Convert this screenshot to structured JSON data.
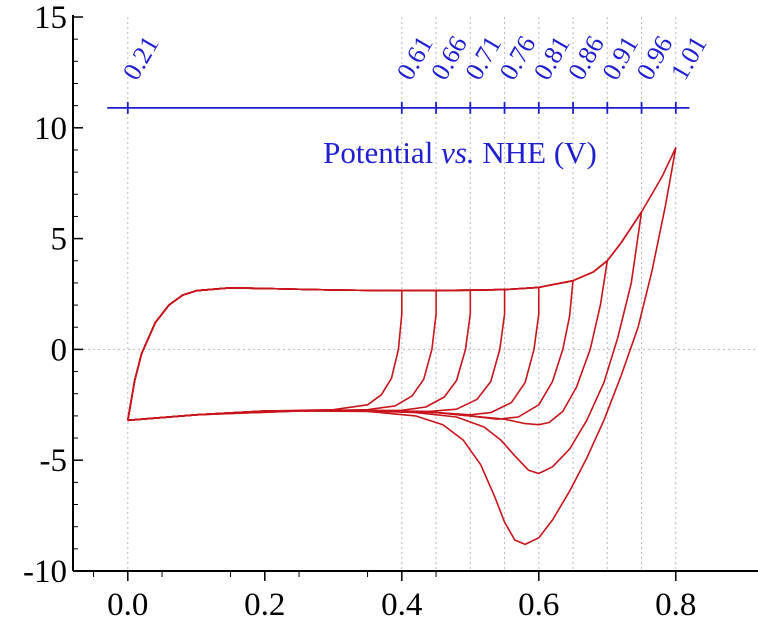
{
  "chart_data": {
    "type": "line",
    "xlabel": "",
    "ylabel": "",
    "xlim": [
      -0.08,
      0.92
    ],
    "ylim": [
      -10,
      15
    ],
    "x_ticks": [
      "0.0",
      "0.2",
      "0.4",
      "0.6",
      "0.8"
    ],
    "x_tick_values": [
      0.0,
      0.2,
      0.4,
      0.6,
      0.8
    ],
    "y_ticks": [
      "15",
      "10",
      "5",
      "0",
      "-5",
      "-10"
    ],
    "y_tick_values": [
      15,
      10,
      5,
      0,
      -5,
      -10
    ],
    "top_axis": {
      "label_prefix": "Potential ",
      "label_italic": "vs.",
      "label_suffix": " NHE (V)",
      "y_position": 10.9,
      "ticks": [
        {
          "label": "0.21",
          "x": 0.0
        },
        {
          "label": "0.61",
          "x": 0.4
        },
        {
          "label": "0.66",
          "x": 0.45
        },
        {
          "label": "0.71",
          "x": 0.5
        },
        {
          "label": "0.76",
          "x": 0.55
        },
        {
          "label": "0.81",
          "x": 0.6
        },
        {
          "label": "0.86",
          "x": 0.65
        },
        {
          "label": "0.91",
          "x": 0.7
        },
        {
          "label": "0.96",
          "x": 0.75
        },
        {
          "label": "1.01",
          "x": 0.8
        }
      ]
    },
    "vertical_gridlines_x": [
      0.0,
      0.4,
      0.45,
      0.5,
      0.55,
      0.6,
      0.65,
      0.7,
      0.75,
      0.8
    ],
    "zero_line": true,
    "colors": {
      "curve": "#c8151b",
      "top_axis": "#1f1fd0",
      "grid": "#b8b8b8",
      "axis": "#000000"
    },
    "curve_color": "#c8151b",
    "series": [
      {
        "vertex": 0.4,
        "forward": [
          [
            0,
            -3.2
          ],
          [
            0.01,
            -1.4
          ],
          [
            0.02,
            -0.2
          ],
          [
            0.04,
            1.2
          ],
          [
            0.06,
            2.0
          ],
          [
            0.08,
            2.45
          ],
          [
            0.1,
            2.65
          ],
          [
            0.15,
            2.78
          ],
          [
            0.2,
            2.75
          ],
          [
            0.3,
            2.68
          ],
          [
            0.4,
            2.65
          ]
        ],
        "reverse": [
          [
            0.4,
            2.65
          ],
          [
            0.4,
            1.6
          ],
          [
            0.395,
            0
          ],
          [
            0.385,
            -1.3
          ],
          [
            0.37,
            -2.05
          ],
          [
            0.35,
            -2.5
          ],
          [
            0.3,
            -2.72
          ],
          [
            0.2,
            -2.78
          ],
          [
            0.1,
            -2.95
          ],
          [
            0,
            -3.2
          ]
        ]
      },
      {
        "vertex": 0.45,
        "forward": [
          [
            0,
            -3.2
          ],
          [
            0.01,
            -1.4
          ],
          [
            0.02,
            -0.2
          ],
          [
            0.04,
            1.2
          ],
          [
            0.06,
            2.0
          ],
          [
            0.08,
            2.45
          ],
          [
            0.1,
            2.65
          ],
          [
            0.15,
            2.78
          ],
          [
            0.2,
            2.75
          ],
          [
            0.3,
            2.68
          ],
          [
            0.4,
            2.65
          ],
          [
            0.45,
            2.66
          ]
        ],
        "reverse": [
          [
            0.45,
            2.66
          ],
          [
            0.45,
            1.6
          ],
          [
            0.444,
            0
          ],
          [
            0.432,
            -1.35
          ],
          [
            0.415,
            -2.1
          ],
          [
            0.39,
            -2.55
          ],
          [
            0.35,
            -2.72
          ],
          [
            0.3,
            -2.75
          ],
          [
            0.2,
            -2.78
          ],
          [
            0.1,
            -2.95
          ],
          [
            0,
            -3.2
          ]
        ]
      },
      {
        "vertex": 0.5,
        "forward": [
          [
            0,
            -3.2
          ],
          [
            0.01,
            -1.4
          ],
          [
            0.02,
            -0.2
          ],
          [
            0.04,
            1.2
          ],
          [
            0.06,
            2.0
          ],
          [
            0.08,
            2.45
          ],
          [
            0.1,
            2.65
          ],
          [
            0.15,
            2.78
          ],
          [
            0.2,
            2.75
          ],
          [
            0.3,
            2.68
          ],
          [
            0.4,
            2.65
          ],
          [
            0.5,
            2.67
          ]
        ],
        "reverse": [
          [
            0.5,
            2.67
          ],
          [
            0.5,
            1.6
          ],
          [
            0.493,
            0
          ],
          [
            0.48,
            -1.4
          ],
          [
            0.462,
            -2.15
          ],
          [
            0.435,
            -2.6
          ],
          [
            0.4,
            -2.75
          ],
          [
            0.3,
            -2.76
          ],
          [
            0.2,
            -2.78
          ],
          [
            0.1,
            -2.95
          ],
          [
            0,
            -3.2
          ]
        ]
      },
      {
        "vertex": 0.55,
        "forward": [
          [
            0,
            -3.2
          ],
          [
            0.01,
            -1.4
          ],
          [
            0.02,
            -0.2
          ],
          [
            0.04,
            1.2
          ],
          [
            0.06,
            2.0
          ],
          [
            0.08,
            2.45
          ],
          [
            0.1,
            2.65
          ],
          [
            0.15,
            2.78
          ],
          [
            0.2,
            2.75
          ],
          [
            0.3,
            2.68
          ],
          [
            0.4,
            2.65
          ],
          [
            0.5,
            2.67
          ],
          [
            0.55,
            2.7
          ]
        ],
        "reverse": [
          [
            0.55,
            2.7
          ],
          [
            0.55,
            1.6
          ],
          [
            0.543,
            0
          ],
          [
            0.53,
            -1.45
          ],
          [
            0.51,
            -2.25
          ],
          [
            0.48,
            -2.7
          ],
          [
            0.44,
            -2.8
          ],
          [
            0.4,
            -2.78
          ],
          [
            0.3,
            -2.76
          ],
          [
            0.2,
            -2.78
          ],
          [
            0.1,
            -2.95
          ],
          [
            0,
            -3.2
          ]
        ]
      },
      {
        "vertex": 0.6,
        "forward": [
          [
            0,
            -3.2
          ],
          [
            0.01,
            -1.4
          ],
          [
            0.02,
            -0.2
          ],
          [
            0.04,
            1.2
          ],
          [
            0.06,
            2.0
          ],
          [
            0.08,
            2.45
          ],
          [
            0.1,
            2.65
          ],
          [
            0.15,
            2.78
          ],
          [
            0.2,
            2.75
          ],
          [
            0.3,
            2.68
          ],
          [
            0.4,
            2.65
          ],
          [
            0.5,
            2.67
          ],
          [
            0.55,
            2.7
          ],
          [
            0.6,
            2.8
          ]
        ],
        "reverse": [
          [
            0.6,
            2.8
          ],
          [
            0.6,
            1.6
          ],
          [
            0.593,
            0
          ],
          [
            0.58,
            -1.5
          ],
          [
            0.56,
            -2.4
          ],
          [
            0.53,
            -2.85
          ],
          [
            0.5,
            -2.95
          ],
          [
            0.45,
            -2.85
          ],
          [
            0.4,
            -2.78
          ],
          [
            0.3,
            -2.76
          ],
          [
            0.2,
            -2.78
          ],
          [
            0.1,
            -2.95
          ],
          [
            0,
            -3.2
          ]
        ]
      },
      {
        "vertex": 0.65,
        "forward": [
          [
            0,
            -3.2
          ],
          [
            0.01,
            -1.4
          ],
          [
            0.02,
            -0.2
          ],
          [
            0.04,
            1.2
          ],
          [
            0.06,
            2.0
          ],
          [
            0.08,
            2.45
          ],
          [
            0.1,
            2.65
          ],
          [
            0.15,
            2.78
          ],
          [
            0.2,
            2.75
          ],
          [
            0.3,
            2.68
          ],
          [
            0.4,
            2.65
          ],
          [
            0.5,
            2.67
          ],
          [
            0.55,
            2.7
          ],
          [
            0.6,
            2.8
          ],
          [
            0.65,
            3.1
          ]
        ],
        "reverse": [
          [
            0.65,
            3.1
          ],
          [
            0.645,
            1.5
          ],
          [
            0.635,
            0
          ],
          [
            0.62,
            -1.45
          ],
          [
            0.6,
            -2.5
          ],
          [
            0.57,
            -3.05
          ],
          [
            0.54,
            -3.15
          ],
          [
            0.5,
            -3.0
          ],
          [
            0.45,
            -2.85
          ],
          [
            0.4,
            -2.78
          ],
          [
            0.3,
            -2.76
          ],
          [
            0.2,
            -2.78
          ],
          [
            0.1,
            -2.95
          ],
          [
            0,
            -3.2
          ]
        ]
      },
      {
        "vertex": 0.7,
        "forward": [
          [
            0,
            -3.2
          ],
          [
            0.01,
            -1.4
          ],
          [
            0.02,
            -0.2
          ],
          [
            0.04,
            1.2
          ],
          [
            0.06,
            2.0
          ],
          [
            0.08,
            2.45
          ],
          [
            0.1,
            2.65
          ],
          [
            0.15,
            2.78
          ],
          [
            0.2,
            2.75
          ],
          [
            0.3,
            2.68
          ],
          [
            0.4,
            2.65
          ],
          [
            0.5,
            2.67
          ],
          [
            0.55,
            2.7
          ],
          [
            0.6,
            2.8
          ],
          [
            0.65,
            3.1
          ],
          [
            0.68,
            3.5
          ],
          [
            0.7,
            4.0
          ]
        ],
        "reverse": [
          [
            0.7,
            4.0
          ],
          [
            0.69,
            2.0
          ],
          [
            0.675,
            0
          ],
          [
            0.655,
            -1.7
          ],
          [
            0.635,
            -2.8
          ],
          [
            0.615,
            -3.3
          ],
          [
            0.6,
            -3.4
          ],
          [
            0.58,
            -3.35
          ],
          [
            0.55,
            -3.15
          ],
          [
            0.5,
            -3.0
          ],
          [
            0.45,
            -2.85
          ],
          [
            0.4,
            -2.78
          ],
          [
            0.3,
            -2.76
          ],
          [
            0.2,
            -2.78
          ],
          [
            0.1,
            -2.95
          ],
          [
            0,
            -3.2
          ]
        ]
      },
      {
        "vertex": 0.75,
        "forward": [
          [
            0,
            -3.2
          ],
          [
            0.01,
            -1.4
          ],
          [
            0.02,
            -0.2
          ],
          [
            0.04,
            1.2
          ],
          [
            0.06,
            2.0
          ],
          [
            0.08,
            2.45
          ],
          [
            0.1,
            2.65
          ],
          [
            0.15,
            2.78
          ],
          [
            0.2,
            2.75
          ],
          [
            0.3,
            2.68
          ],
          [
            0.4,
            2.65
          ],
          [
            0.5,
            2.67
          ],
          [
            0.55,
            2.7
          ],
          [
            0.6,
            2.8
          ],
          [
            0.65,
            3.1
          ],
          [
            0.68,
            3.5
          ],
          [
            0.7,
            4.0
          ],
          [
            0.72,
            4.8
          ],
          [
            0.75,
            6.2
          ]
        ],
        "reverse": [
          [
            0.75,
            6.2
          ],
          [
            0.735,
            3.0
          ],
          [
            0.715,
            0.5
          ],
          [
            0.695,
            -1.5
          ],
          [
            0.67,
            -3.2
          ],
          [
            0.645,
            -4.5
          ],
          [
            0.62,
            -5.3
          ],
          [
            0.6,
            -5.6
          ],
          [
            0.585,
            -5.45
          ],
          [
            0.565,
            -4.8
          ],
          [
            0.545,
            -4.1
          ],
          [
            0.52,
            -3.5
          ],
          [
            0.48,
            -3.05
          ],
          [
            0.42,
            -2.85
          ],
          [
            0.35,
            -2.78
          ],
          [
            0.25,
            -2.78
          ],
          [
            0.1,
            -2.95
          ],
          [
            0,
            -3.2
          ]
        ]
      },
      {
        "vertex": 0.8,
        "forward": [
          [
            0,
            -3.2
          ],
          [
            0.01,
            -1.4
          ],
          [
            0.02,
            -0.2
          ],
          [
            0.04,
            1.2
          ],
          [
            0.06,
            2.0
          ],
          [
            0.08,
            2.45
          ],
          [
            0.1,
            2.65
          ],
          [
            0.15,
            2.78
          ],
          [
            0.2,
            2.75
          ],
          [
            0.3,
            2.68
          ],
          [
            0.4,
            2.65
          ],
          [
            0.5,
            2.67
          ],
          [
            0.55,
            2.7
          ],
          [
            0.6,
            2.8
          ],
          [
            0.65,
            3.1
          ],
          [
            0.68,
            3.5
          ],
          [
            0.7,
            4.0
          ],
          [
            0.72,
            4.8
          ],
          [
            0.75,
            6.2
          ],
          [
            0.78,
            7.8
          ],
          [
            0.8,
            9.1
          ]
        ],
        "reverse": [
          [
            0.8,
            9.1
          ],
          [
            0.785,
            6.5
          ],
          [
            0.765,
            3.5
          ],
          [
            0.745,
            1.0
          ],
          [
            0.72,
            -1.2
          ],
          [
            0.695,
            -3.2
          ],
          [
            0.67,
            -4.9
          ],
          [
            0.645,
            -6.4
          ],
          [
            0.62,
            -7.7
          ],
          [
            0.6,
            -8.5
          ],
          [
            0.58,
            -8.8
          ],
          [
            0.565,
            -8.6
          ],
          [
            0.55,
            -7.8
          ],
          [
            0.535,
            -6.6
          ],
          [
            0.515,
            -5.2
          ],
          [
            0.49,
            -4.1
          ],
          [
            0.46,
            -3.4
          ],
          [
            0.42,
            -3.0
          ],
          [
            0.35,
            -2.8
          ],
          [
            0.25,
            -2.78
          ],
          [
            0.1,
            -2.95
          ],
          [
            0,
            -3.2
          ]
        ]
      }
    ]
  }
}
